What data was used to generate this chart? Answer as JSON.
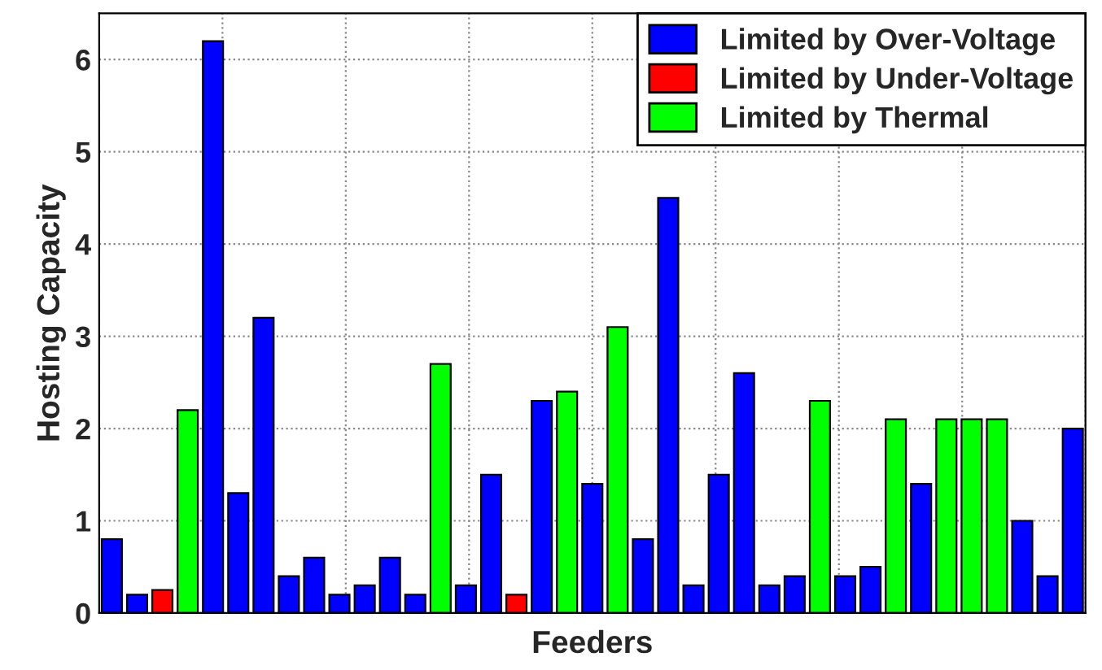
{
  "chart_data": {
    "type": "bar",
    "xlabel": "Feeders",
    "ylabel": "Hosting Capacity",
    "categories": [
      null,
      null,
      null,
      null,
      null,
      null,
      null,
      null,
      null,
      null,
      null,
      null,
      null,
      null,
      null,
      null,
      null,
      null,
      null,
      null,
      null,
      null,
      null,
      null,
      null,
      null,
      null,
      null,
      null,
      null,
      null,
      null,
      null,
      null,
      null,
      null,
      null,
      null,
      null
    ],
    "series": [
      {
        "name": "Limited by Over-Voltage",
        "color": "#0000ff",
        "values": [
          0.8,
          0.2,
          null,
          null,
          6.2,
          1.3,
          3.2,
          0.4,
          0.6,
          0.2,
          0.3,
          0.6,
          0.2,
          null,
          0.3,
          1.5,
          null,
          2.3,
          null,
          1.4,
          null,
          0.8,
          4.5,
          0.3,
          1.5,
          2.6,
          0.3,
          0.4,
          null,
          0.4,
          0.5,
          null,
          1.4,
          null,
          null,
          null,
          1.0,
          0.4,
          2.0
        ]
      },
      {
        "name": "Limited by Under-Voltage",
        "color": "#ff0000",
        "values": [
          null,
          null,
          0.25,
          null,
          null,
          null,
          null,
          null,
          null,
          null,
          null,
          null,
          null,
          null,
          null,
          null,
          0.2,
          null,
          null,
          null,
          null,
          null,
          null,
          null,
          null,
          null,
          null,
          null,
          null,
          null,
          null,
          null,
          null,
          null,
          null,
          null,
          null,
          null,
          null
        ]
      },
      {
        "name": "Limited by Thermal",
        "color": "#00ff00",
        "values": [
          null,
          null,
          null,
          2.2,
          null,
          null,
          null,
          null,
          null,
          null,
          null,
          null,
          null,
          2.7,
          null,
          null,
          null,
          null,
          2.4,
          null,
          3.1,
          null,
          null,
          null,
          null,
          null,
          null,
          null,
          2.3,
          null,
          null,
          2.1,
          null,
          2.1,
          2.1,
          2.1,
          null,
          null,
          null
        ]
      }
    ],
    "ylim": [
      0,
      6.5
    ],
    "yticks": [
      0,
      1,
      2,
      3,
      4,
      5,
      6
    ],
    "grid": true,
    "legend": "top right"
  }
}
